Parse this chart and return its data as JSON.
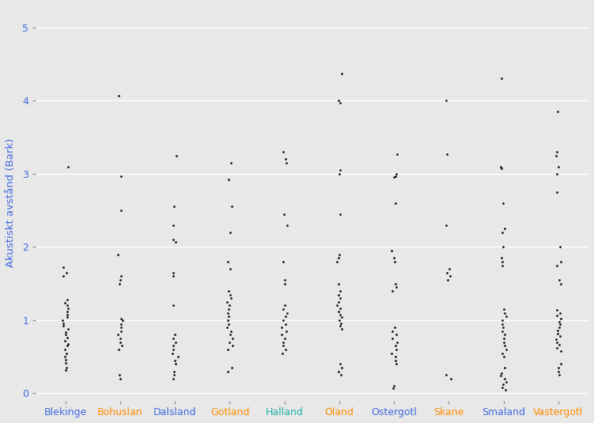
{
  "categories": [
    "Blekinge",
    "Bohuslan",
    "Dalsland",
    "Gotland",
    "Halland",
    "Oland",
    "Ostergotl",
    "Skane",
    "Smaland",
    "Vastergotl"
  ],
  "ylabel": "Akustiskt avstånd (Bark)",
  "background_color": "#E8E8E8",
  "grid_color": "#FFFFFF",
  "dot_color": "#111111",
  "dot_size": 4,
  "ylim": [
    -0.1,
    5.3
  ],
  "yticks": [
    0,
    1,
    2,
    3,
    4,
    5
  ],
  "label_colors": [
    "#4169E1",
    "#FF8C00",
    "#4169E1",
    "#FF8C00",
    "#20B2AA",
    "#FF8C00",
    "#4169E1",
    "#FF8C00",
    "#4169E1",
    "#FF8C00"
  ],
  "data": {
    "Blekinge": [
      0.32,
      0.35,
      0.42,
      0.46,
      0.5,
      0.55,
      0.6,
      0.65,
      0.68,
      0.72,
      0.76,
      0.8,
      0.84,
      0.88,
      0.92,
      0.96,
      1.0,
      1.04,
      1.08,
      1.12,
      1.16,
      1.2,
      1.24,
      1.28,
      1.6,
      1.65,
      1.72,
      3.1
    ],
    "Bohuslan": [
      0.2,
      0.25,
      0.6,
      0.65,
      0.7,
      0.75,
      0.8,
      0.85,
      0.9,
      0.95,
      1.0,
      1.02,
      1.5,
      1.55,
      1.6,
      1.9,
      2.5,
      2.97,
      4.07
    ],
    "Dalsland": [
      0.2,
      0.25,
      0.3,
      0.4,
      0.45,
      0.5,
      0.55,
      0.6,
      0.65,
      0.7,
      0.75,
      0.8,
      1.2,
      1.6,
      1.65,
      2.07,
      2.1,
      2.3,
      2.55,
      3.25
    ],
    "Gotland": [
      0.3,
      0.35,
      0.6,
      0.65,
      0.7,
      0.75,
      0.8,
      0.85,
      0.9,
      0.95,
      1.0,
      1.05,
      1.1,
      1.15,
      1.2,
      1.25,
      1.3,
      1.35,
      1.4,
      1.7,
      1.8,
      2.2,
      2.55,
      2.92,
      3.15
    ],
    "Halland": [
      0.55,
      0.6,
      0.65,
      0.7,
      0.75,
      0.8,
      0.85,
      0.9,
      0.95,
      1.0,
      1.05,
      1.1,
      1.15,
      1.2,
      1.5,
      1.55,
      1.8,
      2.3,
      2.45,
      3.15,
      3.2,
      3.3
    ],
    "Oland": [
      0.25,
      0.3,
      0.35,
      0.4,
      0.88,
      0.92,
      0.96,
      1.0,
      1.04,
      1.08,
      1.12,
      1.16,
      1.2,
      1.25,
      1.3,
      1.35,
      1.4,
      1.5,
      1.8,
      1.85,
      1.9,
      2.45,
      3.0,
      3.05,
      3.97,
      4.0,
      4.37
    ],
    "Ostergotl": [
      0.07,
      0.1,
      0.4,
      0.45,
      0.5,
      0.55,
      0.6,
      0.65,
      0.7,
      0.75,
      0.8,
      0.85,
      0.9,
      1.4,
      1.45,
      1.5,
      1.8,
      1.85,
      1.95,
      2.6,
      2.95,
      2.97,
      3.0,
      3.27
    ],
    "Skane": [
      0.2,
      0.25,
      1.55,
      1.6,
      1.65,
      1.7,
      2.3,
      3.27,
      4.0
    ],
    "Smaland": [
      0.05,
      0.08,
      0.12,
      0.16,
      0.2,
      0.24,
      0.28,
      0.35,
      0.5,
      0.55,
      0.6,
      0.65,
      0.7,
      0.75,
      0.8,
      0.85,
      0.9,
      0.95,
      1.0,
      1.05,
      1.1,
      1.15,
      1.75,
      1.8,
      1.85,
      2.0,
      2.2,
      2.25,
      2.6,
      3.07,
      3.1,
      4.3
    ],
    "Vastergotl": [
      0.25,
      0.3,
      0.35,
      0.4,
      0.58,
      0.62,
      0.66,
      0.7,
      0.74,
      0.78,
      0.82,
      0.86,
      0.9,
      0.94,
      0.98,
      1.02,
      1.06,
      1.1,
      1.14,
      1.5,
      1.55,
      1.75,
      1.8,
      2.0,
      2.75,
      3.0,
      3.1,
      3.25,
      3.3,
      3.85
    ]
  }
}
